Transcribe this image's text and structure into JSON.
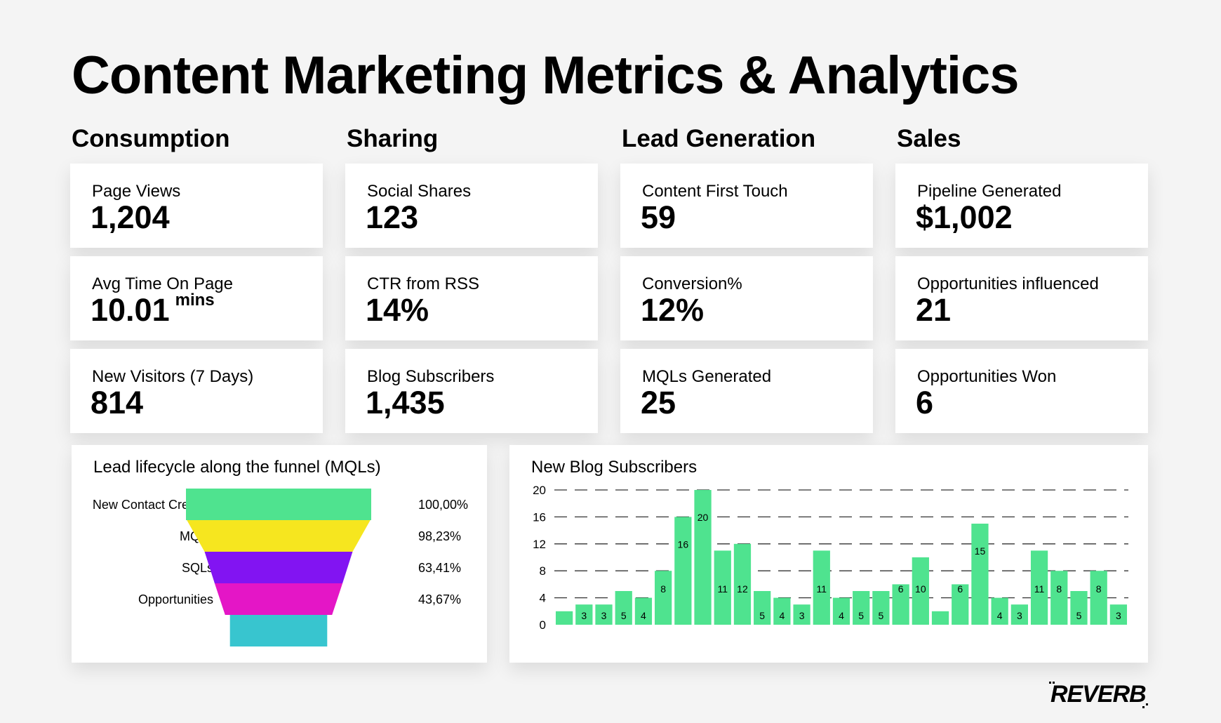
{
  "title": "Content Marketing Metrics & Analytics",
  "columns": [
    {
      "heading": "Consumption",
      "cards": [
        {
          "label": "Page Views",
          "value": "1,204",
          "unit": ""
        },
        {
          "label": "Avg Time On Page",
          "value": "10.01",
          "unit": "mins"
        },
        {
          "label": "New Visitors (7 Days)",
          "value": "814",
          "unit": ""
        }
      ]
    },
    {
      "heading": "Sharing",
      "cards": [
        {
          "label": "Social Shares",
          "value": "123",
          "unit": ""
        },
        {
          "label": "CTR from RSS",
          "value": "14%",
          "unit": ""
        },
        {
          "label": "Blog Subscribers",
          "value": "1,435",
          "unit": ""
        }
      ]
    },
    {
      "heading": "Lead Generation",
      "cards": [
        {
          "label": "Content First Touch",
          "value": "59",
          "unit": ""
        },
        {
          "label": "Conversion%",
          "value": "12%",
          "unit": ""
        },
        {
          "label": "MQLs Generated",
          "value": "25",
          "unit": ""
        }
      ]
    },
    {
      "heading": "Sales",
      "cards": [
        {
          "label": "Pipeline Generated",
          "value": "$1,002",
          "unit": ""
        },
        {
          "label": "Opportunities influenced",
          "value": "21",
          "unit": ""
        },
        {
          "label": "Opportunities Won",
          "value": "6",
          "unit": ""
        }
      ]
    }
  ],
  "chart_data": [
    {
      "type": "funnel",
      "title": "Lead lifecycle along the funnel (MQLs)",
      "stages": [
        {
          "label": "New Contact Created",
          "percent_text": "100,00%",
          "value": 100.0,
          "color": "#4fe38f"
        },
        {
          "label": "MQLs",
          "percent_text": "98,23%",
          "value": 98.23,
          "color": "#f6e61f"
        },
        {
          "label": "SQLs",
          "percent_text": "63,41%",
          "value": 63.41,
          "color": "#8214f2"
        },
        {
          "label": "Opportunities",
          "percent_text": "43,67%",
          "value": 43.67,
          "color": "#e416c6"
        },
        {
          "label": "",
          "percent_text": "",
          "value": null,
          "color": "#38c5cf"
        }
      ]
    },
    {
      "type": "bar",
      "title": "New Blog Subscribers",
      "values": [
        2,
        3,
        3,
        5,
        4,
        8,
        16,
        20,
        11,
        12,
        5,
        4,
        3,
        11,
        4,
        5,
        5,
        6,
        10,
        2,
        6,
        15,
        4,
        3,
        11,
        8,
        5,
        8,
        3
      ],
      "data_labels": [
        "",
        "3",
        "3",
        "5",
        "4",
        "8",
        "16",
        "20",
        "11",
        "12",
        "5",
        "4",
        "3",
        "11",
        "4",
        "5",
        "5",
        "6",
        "10",
        "",
        "6",
        "15",
        "4",
        "3",
        "11",
        "8",
        "5",
        "8",
        "3"
      ],
      "ylim": [
        0,
        20
      ],
      "yticks": [
        "0",
        "4",
        "8",
        "12",
        "16",
        "20"
      ],
      "grid": true,
      "bar_color": "#4fe38f"
    }
  ],
  "brand": {
    "logo": "REVERB"
  }
}
